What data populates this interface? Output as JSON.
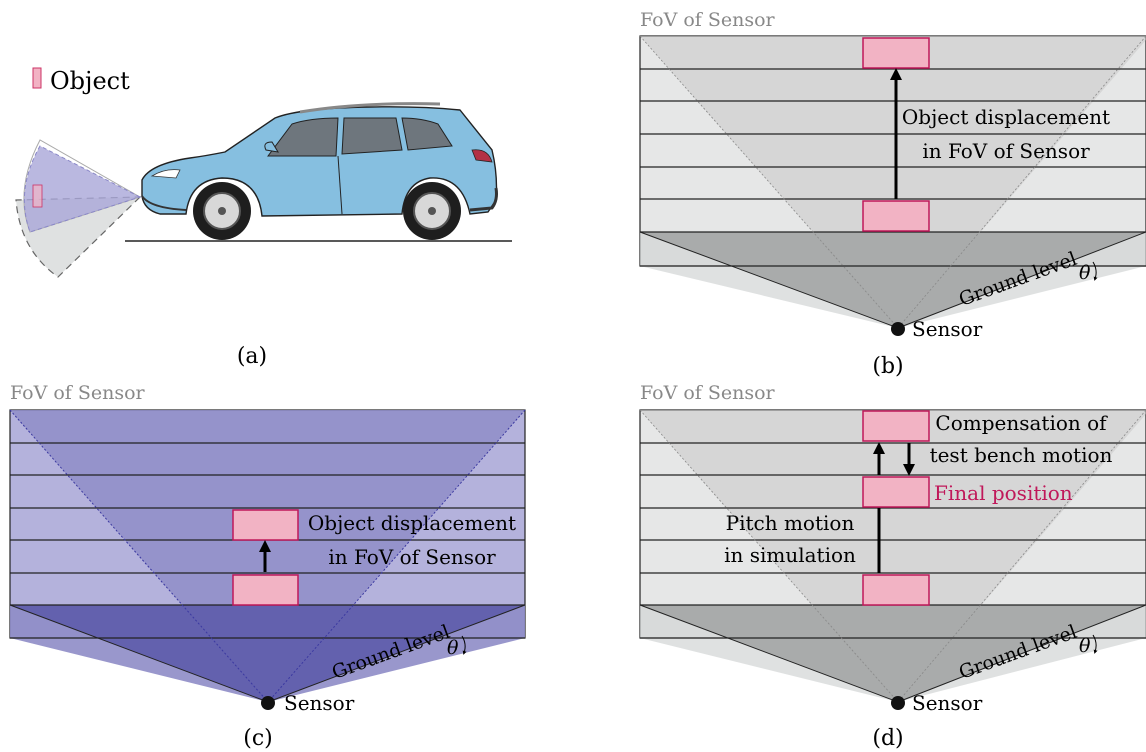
{
  "panel_a": {
    "legend_label": "Object",
    "caption": "(a)",
    "colors": {
      "object": "#f2b3c4",
      "object_stroke": "#cc3366",
      "car_body": "#86bfe0",
      "fov_purple": "#a9a6d8",
      "fov_grey": "#dfe1e1"
    }
  },
  "panel_b": {
    "fov_label": "FoV of Sensor",
    "displacement_line1": "Object displacement",
    "displacement_line2": "in FoV of Sensor",
    "ground_label": "Ground level",
    "theta": "θ",
    "sensor_label": "Sensor",
    "caption": "(b)"
  },
  "panel_c": {
    "fov_label": "FoV of Sensor",
    "displacement_line1": "Object displacement",
    "displacement_line2": "in FoV of Sensor",
    "ground_label": "Ground level",
    "theta": "θ",
    "sensor_label": "Sensor",
    "caption": "(c)"
  },
  "panel_d": {
    "fov_label": "FoV of Sensor",
    "compensation_line1": "Compensation of",
    "compensation_line2": "test bench motion",
    "final_position": "Final position",
    "pitch_line1": "Pitch motion",
    "pitch_line2": "in simulation",
    "ground_label": "Ground level",
    "theta": "θ",
    "sensor_label": "Sensor",
    "caption": "(d)",
    "colors": {
      "final_position_text": "#c0185a"
    }
  }
}
